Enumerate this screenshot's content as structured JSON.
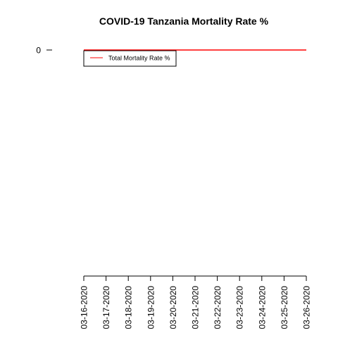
{
  "chart_data": {
    "type": "line",
    "title": "COVID-19 Tanzania Mortality Rate %",
    "xlabel": "",
    "ylabel": "",
    "x": [
      "03-16-2020",
      "03-17-2020",
      "03-18-2020",
      "03-19-2020",
      "03-20-2020",
      "03-21-2020",
      "03-22-2020",
      "03-23-2020",
      "03-24-2020",
      "03-25-2020",
      "03-26-2020"
    ],
    "series": [
      {
        "name": "Total Mortality Rate %",
        "color": "#ff0000",
        "values": [
          0,
          0,
          0,
          0,
          0,
          0,
          0,
          0,
          0,
          0,
          0
        ]
      }
    ],
    "y_ticks": [
      "0"
    ],
    "legend_position": "top-left",
    "grid": false
  }
}
